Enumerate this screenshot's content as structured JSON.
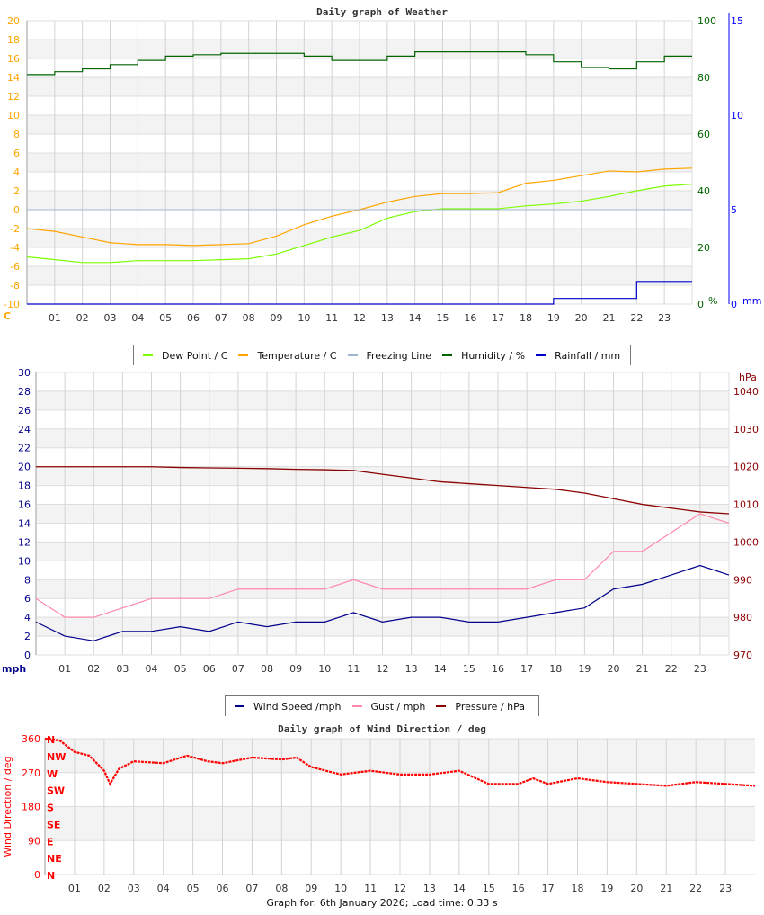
{
  "chart_data": [
    {
      "type": "line",
      "title": "Daily graph of Weather",
      "x_ticks": [
        "01",
        "02",
        "03",
        "04",
        "05",
        "06",
        "07",
        "08",
        "09",
        "10",
        "11",
        "12",
        "13",
        "14",
        "15",
        "16",
        "17",
        "18",
        "19",
        "20",
        "21",
        "22",
        "23"
      ],
      "x_hours": [
        0,
        1,
        2,
        3,
        4,
        5,
        6,
        7,
        8,
        9,
        10,
        11,
        12,
        13,
        14,
        15,
        16,
        17,
        18,
        19,
        20,
        21,
        22,
        23,
        24
      ],
      "left_axis": {
        "label": "C",
        "ylim": [
          -10,
          20
        ],
        "ticks": [
          -10,
          -8,
          -6,
          -4,
          -2,
          0,
          2,
          4,
          6,
          8,
          10,
          12,
          14,
          16,
          18,
          20
        ],
        "color": "#ffa500"
      },
      "right_axis_1": {
        "label": "%",
        "ylim": [
          0,
          100
        ],
        "ticks": [
          0,
          20,
          40,
          60,
          80,
          100
        ],
        "color": "#006400"
      },
      "right_axis_2": {
        "label": "mm",
        "ylim": [
          0,
          15
        ],
        "ticks": [
          0,
          5,
          10,
          15
        ],
        "color": "#0000ff"
      },
      "grid": true,
      "legend_position": "bottom",
      "series": [
        {
          "name": "Dew Point / C",
          "color": "#7cfc00",
          "axis": "left",
          "values": [
            -5,
            -5.3,
            -5.6,
            -5.6,
            -5.4,
            -5.4,
            -5.4,
            -5.3,
            -5.2,
            -4.7,
            -3.8,
            -2.9,
            -2.2,
            -0.9,
            -0.2,
            0.1,
            0.1,
            0.1,
            0.4,
            0.6,
            0.9,
            1.4,
            2.0,
            2.5,
            2.7
          ]
        },
        {
          "name": "Temperature / C",
          "color": "#ffa500",
          "axis": "left",
          "values": [
            -2,
            -2.3,
            -2.9,
            -3.5,
            -3.7,
            -3.7,
            -3.8,
            -3.7,
            -3.6,
            -2.8,
            -1.6,
            -0.7,
            0,
            0.8,
            1.4,
            1.7,
            1.7,
            1.8,
            2.8,
            3.1,
            3.6,
            4.1,
            4.0,
            4.3,
            4.4
          ]
        },
        {
          "name": "Freezing Line",
          "color": "#a0b4d0",
          "axis": "left",
          "values": [
            0,
            0,
            0,
            0,
            0,
            0,
            0,
            0,
            0,
            0,
            0,
            0,
            0,
            0,
            0,
            0,
            0,
            0,
            0,
            0,
            0,
            0,
            0,
            0,
            0
          ]
        },
        {
          "name": "Humidity / %",
          "color": "#006400",
          "axis": "right1",
          "values": [
            81,
            82,
            83,
            84.5,
            86,
            87.5,
            88,
            88.5,
            88.5,
            88.5,
            87.5,
            86,
            86,
            87.5,
            89,
            89,
            89,
            89,
            88,
            85.5,
            83.5,
            83,
            85.5,
            87.5,
            87.5
          ]
        },
        {
          "name": "Rainfall / mm",
          "color": "#0000cd",
          "axis": "right2",
          "values": [
            0,
            0,
            0,
            0,
            0,
            0,
            0,
            0,
            0,
            0,
            0,
            0,
            0,
            0,
            0,
            0,
            0,
            0,
            0,
            0.3,
            0.3,
            0.3,
            1.2,
            1.2,
            1.2
          ]
        }
      ]
    },
    {
      "type": "line",
      "title": "",
      "x_ticks": [
        "01",
        "02",
        "03",
        "04",
        "05",
        "06",
        "07",
        "08",
        "09",
        "10",
        "11",
        "12",
        "13",
        "14",
        "15",
        "16",
        "17",
        "18",
        "19",
        "20",
        "21",
        "22",
        "23"
      ],
      "x_hours": [
        0,
        1,
        2,
        3,
        4,
        5,
        6,
        7,
        8,
        9,
        10,
        11,
        12,
        13,
        14,
        15,
        16,
        17,
        18,
        19,
        20,
        21,
        22,
        23,
        24
      ],
      "left_axis": {
        "label": "mph",
        "ylim": [
          0,
          30
        ],
        "ticks": [
          0,
          2,
          4,
          6,
          8,
          10,
          12,
          14,
          16,
          18,
          20,
          22,
          24,
          26,
          28,
          30
        ],
        "color": "#00008b"
      },
      "right_axis_1": {
        "label": "hPa",
        "ylim": [
          970,
          1040
        ],
        "ticks": [
          970,
          980,
          990,
          1000,
          1010,
          1020,
          1030,
          1040
        ],
        "color": "#8b0000"
      },
      "grid": true,
      "legend_position": "bottom",
      "series": [
        {
          "name": "Wind Speed /mph",
          "color": "#00008b",
          "axis": "left",
          "values": [
            3.5,
            2,
            1.5,
            2.5,
            2.5,
            3,
            2.5,
            3.5,
            3,
            3.5,
            3.5,
            4.5,
            3.5,
            4,
            4,
            3.5,
            3.5,
            4,
            4.5,
            5,
            7,
            7.5,
            8.5,
            9.5,
            8.5
          ]
        },
        {
          "name": "Gust / mph",
          "color": "#ff88aa",
          "axis": "left",
          "values": [
            6,
            4,
            4,
            5,
            6,
            6,
            6,
            7,
            7,
            7,
            7,
            8,
            7,
            7,
            7,
            7,
            7,
            7,
            8,
            8,
            11,
            11,
            13,
            15,
            14
          ]
        },
        {
          "name": "Pressure / hPa",
          "color": "#8b0000",
          "axis": "right1",
          "values": [
            1020,
            1020,
            1020,
            1020,
            1020,
            1019.8,
            1019.7,
            1019.6,
            1019.5,
            1019.3,
            1019.2,
            1019,
            1018,
            1017,
            1016,
            1015.5,
            1015,
            1014.5,
            1014,
            1013,
            1011.5,
            1010,
            1009,
            1008,
            1007.5
          ]
        }
      ]
    },
    {
      "type": "scatter",
      "title": "Daily graph of Wind Direction / deg",
      "ylabel": "Wind Direction / deg",
      "x_ticks": [
        "01",
        "02",
        "03",
        "04",
        "05",
        "06",
        "07",
        "08",
        "09",
        "10",
        "11",
        "12",
        "13",
        "14",
        "15",
        "16",
        "17",
        "18",
        "19",
        "20",
        "21",
        "22",
        "23"
      ],
      "ylim": [
        0,
        360
      ],
      "y_ticks": [
        0,
        90,
        180,
        270,
        360
      ],
      "compass_labels": [
        "N",
        "NE",
        "E",
        "SE",
        "S",
        "SW",
        "W",
        "NW",
        "N"
      ],
      "grid": true,
      "color": "#ff0000",
      "series": [
        {
          "x": [
            0,
            0.5,
            1,
            1.5,
            2,
            2.2,
            2.5,
            3,
            4,
            4.8,
            5.5,
            6,
            7,
            8,
            8.5,
            9,
            10,
            11,
            12,
            13,
            14,
            15,
            16,
            16.5,
            17,
            18,
            19,
            20,
            21,
            22,
            23,
            24
          ],
          "values": [
            360,
            355,
            325,
            315,
            275,
            240,
            280,
            300,
            295,
            315,
            300,
            295,
            310,
            305,
            310,
            285,
            265,
            275,
            265,
            265,
            275,
            240,
            240,
            255,
            240,
            255,
            245,
            240,
            235,
            245,
            240,
            235
          ]
        }
      ]
    }
  ],
  "footer": "Graph for: 6th January 2026; Load time: 0.33 s"
}
